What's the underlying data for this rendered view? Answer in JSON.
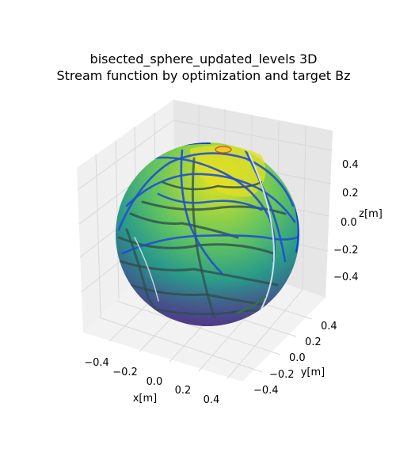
{
  "chart_data": {
    "type": "surface3d",
    "title": "bisected_sphere_updated_levels 3D",
    "subtitle": "Stream function by optimization and target Bz",
    "xlabel": "x[m]",
    "ylabel": "y[m]",
    "zlabel": "z[m]",
    "x_ticks": [
      "−0.4",
      "−0.2",
      "0.0",
      "0.2",
      "0.4"
    ],
    "y_ticks": [
      "−0.4",
      "−0.2",
      "0.0",
      "0.2",
      "0.4"
    ],
    "z_ticks": [
      "−0.4",
      "−0.2",
      "0.0",
      "0.2",
      "0.4"
    ],
    "xlim": [
      -0.5,
      0.5
    ],
    "ylim": [
      -0.5,
      0.5
    ],
    "zlim": [
      -0.5,
      0.5
    ],
    "sphere_radius": 0.5,
    "grid": true,
    "colormap": "viridis",
    "colors": {
      "pane_left": "#f0f0f0",
      "pane_right": "#e6e6e6",
      "pane_floor": "#f2f2f2",
      "grid": "#d9d9d9",
      "contour_blue": "#1f4fd0",
      "contour_dark": "#2d4a4a",
      "viridis_low": "#440154",
      "viridis_mid": "#21908d",
      "viridis_high": "#fde725"
    }
  }
}
